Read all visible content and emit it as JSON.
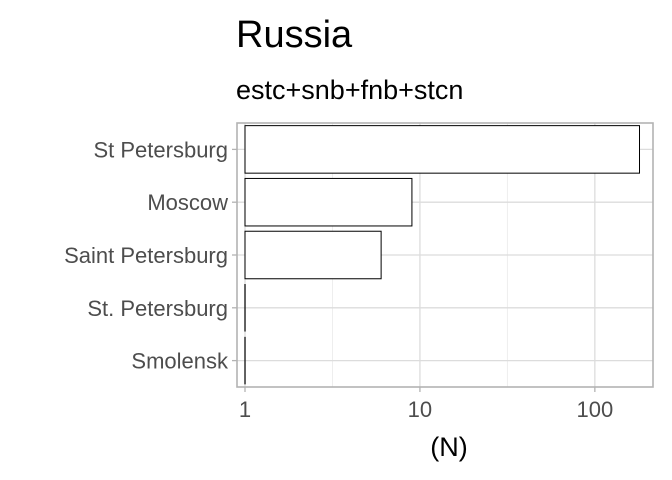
{
  "chart_data": {
    "type": "bar",
    "orientation": "horizontal",
    "title": "Russia",
    "subtitle": "estc+snb+fnb+stcn",
    "xlabel": "(N)",
    "ylabel": "",
    "x_scale": "log10",
    "xlim": [
      0.9,
      215
    ],
    "x_ticks": [
      1,
      10,
      100
    ],
    "x_tick_labels": [
      "1",
      "10",
      "100"
    ],
    "grid": true,
    "legend": "none",
    "categories": [
      "St Petersburg",
      "Moscow",
      "Saint Petersburg",
      "St. Petersburg",
      "Smolensk"
    ],
    "values": [
      180,
      9,
      6,
      1,
      1
    ],
    "colors": {
      "bar_fill": "#ffffff",
      "bar_stroke": "#000000",
      "grid": "#dcdcdc",
      "border": "#b3b3b3",
      "label": "#4d4d4d"
    }
  }
}
